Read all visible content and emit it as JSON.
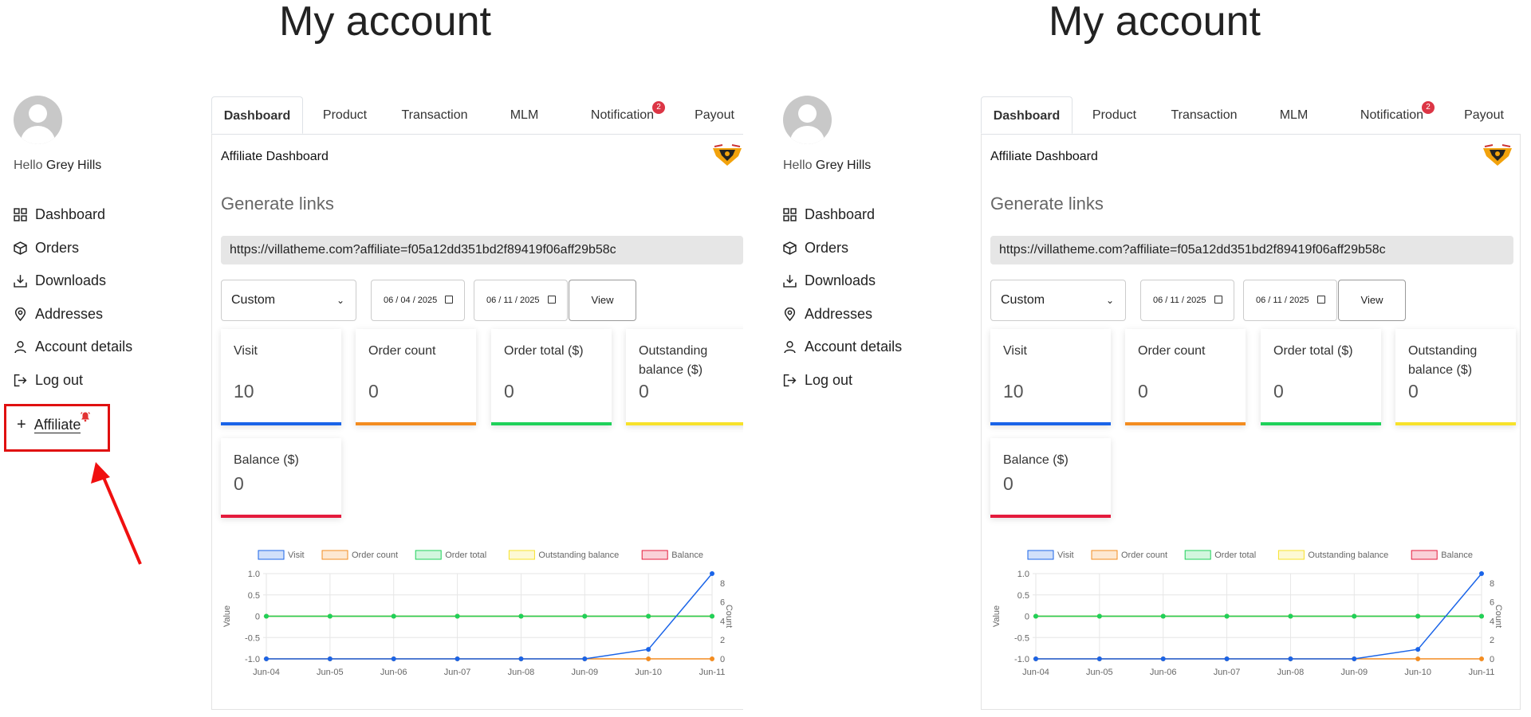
{
  "page_title": "My account",
  "user": {
    "hello": "Hello",
    "name": "Grey Hills"
  },
  "nav": {
    "dashboard": "Dashboard",
    "orders": "Orders",
    "downloads": "Downloads",
    "addresses": "Addresses",
    "account_details": "Account details",
    "logout": "Log out",
    "affiliate": "Affiliate"
  },
  "tabs": {
    "dashboard": "Dashboard",
    "product": "Product",
    "transaction": "Transaction",
    "mlm": "MLM",
    "notification": "Notification",
    "notification_badge": "2",
    "payout": "Payout"
  },
  "dashboard": {
    "title": "Affiliate Dashboard",
    "generate_links": "Generate links",
    "link": "https://villatheme.com?affiliate=f05a12dd351bd2f89419f06aff29b58c",
    "range_select": "Custom",
    "view_button": "View"
  },
  "left_dates": {
    "from": "06 / 04 / 2025",
    "to": "06 / 11 / 2025"
  },
  "right_dates": {
    "from": "06 / 11 / 2025",
    "to": "06 / 11 / 2025"
  },
  "stats": {
    "visit": {
      "label": "Visit",
      "value": "10"
    },
    "order_count": {
      "label": "Order count",
      "value": "0"
    },
    "order_total": {
      "label": "Order total ($)",
      "value": "0"
    },
    "outstanding": {
      "label": "Outstanding balance ($)",
      "value": "0"
    },
    "balance": {
      "label": "Balance ($)",
      "value": "0"
    }
  },
  "colors": {
    "visit": "#1a64e8",
    "order_count": "#f38c20",
    "order_total": "#1fd15a",
    "outstanding": "#f7e22a",
    "balance": "#e41b3d"
  },
  "chart_data": {
    "type": "line",
    "categories": [
      "Jun-04",
      "Jun-05",
      "Jun-06",
      "Jun-07",
      "Jun-08",
      "Jun-09",
      "Jun-10",
      "Jun-11"
    ],
    "ylabel": "Value",
    "y2label": "Count",
    "ylim": [
      -1,
      1
    ],
    "y2lim": [
      0,
      9
    ],
    "yticks": [
      "1.0",
      "0.5",
      "0",
      "-0.5",
      "-1.0"
    ],
    "y2ticks": [
      "8",
      "6",
      "4",
      "2",
      "0"
    ],
    "legend": [
      "Visit",
      "Order count",
      "Order total",
      "Outstanding balance",
      "Balance"
    ],
    "series": [
      {
        "name": "Visit",
        "axis": "right",
        "values": [
          0,
          0,
          0,
          0,
          0,
          0,
          1,
          9
        ]
      },
      {
        "name": "Order count",
        "axis": "right",
        "values": [
          0,
          0,
          0,
          0,
          0,
          0,
          0,
          0
        ]
      },
      {
        "name": "Order total",
        "axis": "left",
        "values": [
          0,
          0,
          0,
          0,
          0,
          0,
          0,
          0
        ]
      },
      {
        "name": "Outstanding balance",
        "axis": "left",
        "values": [
          0,
          0,
          0,
          0,
          0,
          0,
          0,
          0
        ]
      },
      {
        "name": "Balance",
        "axis": "left",
        "values": [
          0,
          0,
          0,
          0,
          0,
          0,
          0,
          0
        ]
      }
    ]
  }
}
